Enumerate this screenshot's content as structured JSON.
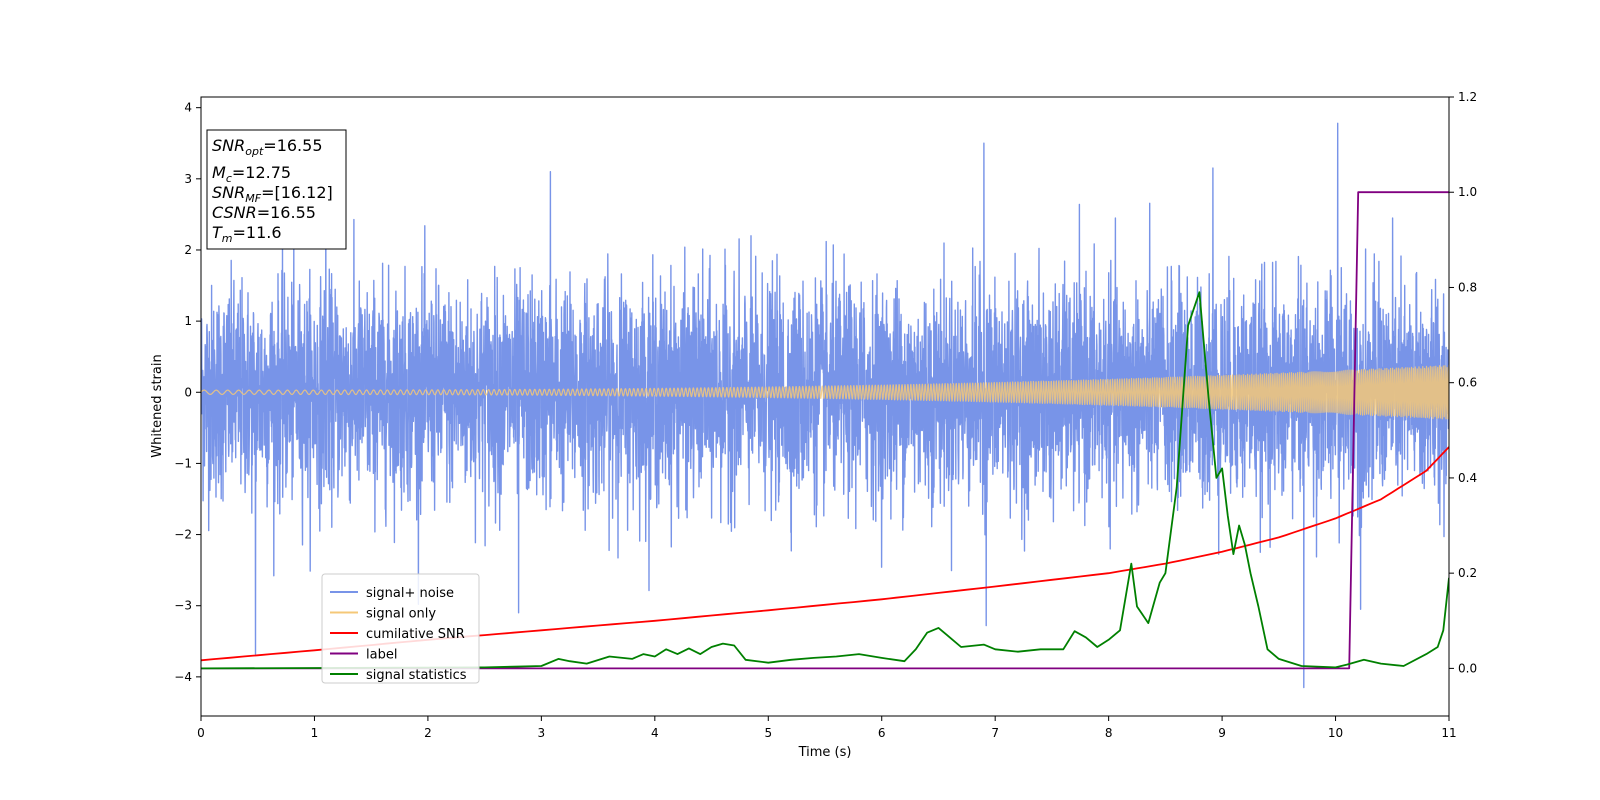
{
  "chart_data": {
    "type": "line",
    "title": "",
    "xlabel": "Time (s)",
    "ylabel": "Whitened strain",
    "y2label": "",
    "xlim": [
      0,
      11
    ],
    "ylim": [
      -4.55,
      4.15
    ],
    "y2lim": [
      -0.1,
      1.2
    ],
    "x_ticks": [
      "0",
      "1",
      "2",
      "3",
      "4",
      "5",
      "6",
      "7",
      "8",
      "9",
      "10",
      "11"
    ],
    "y_ticks": [
      "4",
      "3",
      "2",
      "1",
      "0",
      "−1",
      "−2",
      "−3",
      "−4"
    ],
    "y2_ticks": [
      "1.2",
      "1.0",
      "0.8",
      "0.6",
      "0.4",
      "0.2",
      "0.0"
    ],
    "grid": false,
    "legend_position": "lower-left",
    "annotation": {
      "lines": [
        {
          "name": "SNR",
          "sub": "opt",
          "value": "=16.55"
        },
        {
          "name": "M",
          "sub": "c",
          "value": "=12.75"
        },
        {
          "name": "SNR",
          "sub": "MF",
          "value": "=[16.12]"
        },
        {
          "name": "CSNR",
          "sub": "",
          "value": "=16.55"
        },
        {
          "name": "T",
          "sub": "m",
          "value": "=11.6"
        }
      ]
    },
    "series": [
      {
        "name": "signal+ noise",
        "color": "#7894e8",
        "axis": "left",
        "kind": "noise",
        "noise_std": 0.95,
        "peaks": [
          [
            0.48,
            -3.68
          ],
          [
            2.8,
            -3.1
          ],
          [
            3.08,
            3.1
          ],
          [
            6.9,
            3.5
          ],
          [
            6.92,
            -3.28
          ],
          [
            8.92,
            3.15
          ],
          [
            9.72,
            -4.15
          ],
          [
            10.02,
            3.78
          ],
          [
            10.22,
            -3.05
          ],
          [
            1.1,
            2.7
          ]
        ]
      },
      {
        "name": "signal only",
        "color": "#f5c878",
        "axis": "left",
        "kind": "chirp",
        "amp_start": 0.03,
        "amp_end": 0.38
      },
      {
        "name": "cumilative SNR",
        "color": "#ff0000",
        "axis": "right",
        "x": [
          0,
          1,
          2,
          3,
          4,
          5,
          6,
          7,
          8,
          8.5,
          9,
          9.5,
          10,
          10.4,
          10.8,
          11
        ],
        "values": [
          0.017,
          0.038,
          0.06,
          0.08,
          0.1,
          0.122,
          0.145,
          0.172,
          0.2,
          0.22,
          0.245,
          0.275,
          0.315,
          0.355,
          0.415,
          0.465
        ]
      },
      {
        "name": "label",
        "color": "#800080",
        "axis": "right",
        "x": [
          0,
          10.12,
          10.2,
          11
        ],
        "values": [
          0,
          0,
          1,
          1
        ]
      },
      {
        "name": "signal statistics",
        "color": "#008000",
        "axis": "right",
        "x": [
          0,
          2.5,
          3.0,
          3.15,
          3.25,
          3.4,
          3.6,
          3.8,
          3.9,
          4.0,
          4.1,
          4.2,
          4.3,
          4.4,
          4.5,
          4.6,
          4.7,
          4.8,
          5.0,
          5.2,
          5.4,
          5.6,
          5.8,
          6.0,
          6.2,
          6.3,
          6.4,
          6.5,
          6.6,
          6.7,
          6.9,
          7.0,
          7.2,
          7.4,
          7.6,
          7.7,
          7.8,
          7.9,
          8.0,
          8.1,
          8.2,
          8.25,
          8.35,
          8.45,
          8.5,
          8.6,
          8.65,
          8.7,
          8.8,
          8.88,
          8.95,
          9.0,
          9.05,
          9.1,
          9.15,
          9.2,
          9.25,
          9.32,
          9.4,
          9.5,
          9.7,
          10.0,
          10.1,
          10.25,
          10.4,
          10.6,
          10.8,
          10.9,
          10.95,
          11.0
        ],
        "values": [
          0,
          0.002,
          0.005,
          0.02,
          0.015,
          0.01,
          0.025,
          0.02,
          0.03,
          0.025,
          0.04,
          0.03,
          0.042,
          0.03,
          0.045,
          0.052,
          0.048,
          0.018,
          0.012,
          0.018,
          0.022,
          0.025,
          0.03,
          0.022,
          0.015,
          0.04,
          0.075,
          0.085,
          0.065,
          0.045,
          0.05,
          0.04,
          0.035,
          0.04,
          0.04,
          0.078,
          0.065,
          0.045,
          0.06,
          0.08,
          0.22,
          0.13,
          0.095,
          0.18,
          0.2,
          0.38,
          0.55,
          0.72,
          0.79,
          0.57,
          0.4,
          0.42,
          0.32,
          0.24,
          0.3,
          0.26,
          0.2,
          0.13,
          0.04,
          0.02,
          0.005,
          0.002,
          0.008,
          0.018,
          0.01,
          0.005,
          0.03,
          0.045,
          0.08,
          0.19
        ]
      }
    ]
  }
}
